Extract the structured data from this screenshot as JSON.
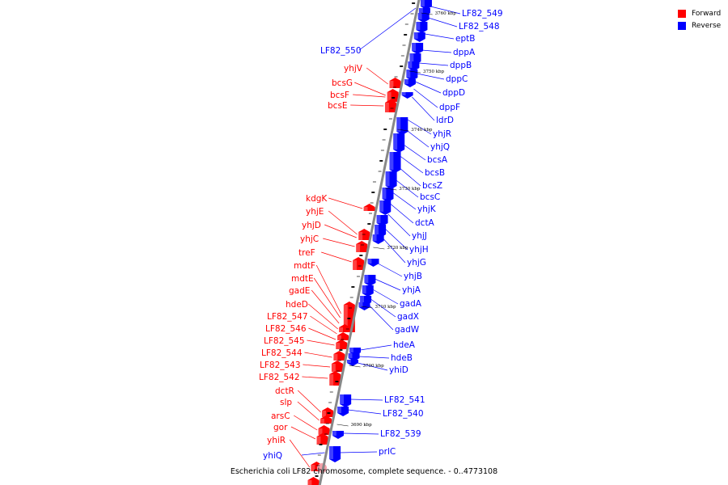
{
  "caption": "Escherichia coli LF82 chromosome, complete sequence. - 0..4773108",
  "legend": [
    {
      "label": "Forward",
      "color": "#ff0000"
    },
    {
      "label": "Reverse",
      "color": "#0000ff"
    }
  ],
  "colors": {
    "forward": "#ff0000",
    "reverse": "#0000ff",
    "axis": "#888888"
  },
  "kbp_ticks": [
    "3760 kbp",
    "3750 kbp",
    "3740 kbp",
    "3730 kbp",
    "3720 kbp",
    "3710 kbp",
    "3700 kbp",
    "3690 kbp"
  ],
  "reverse_genes": [
    "LF82_549",
    "LF82_548",
    "eptB",
    "dppA",
    "dppB",
    "dppC",
    "dppD",
    "dppF",
    "ldrD",
    "yhjR",
    "yhjQ",
    "bcsA",
    "bcsB",
    "bcsZ",
    "bcsC",
    "yhjK",
    "dctA",
    "yhjJ",
    "yhjH",
    "yhjG",
    "yhjB",
    "yhjA",
    "gadA",
    "gadX",
    "gadW",
    "hdeA",
    "hdeB",
    "yhiD",
    "LF82_541",
    "LF82_540",
    "LF82_539",
    "prlC",
    "yhiQ",
    "LF82_550"
  ],
  "forward_genes": [
    "yhjV",
    "bcsG",
    "bcsF",
    "bcsE",
    "kdgK",
    "yhjE",
    "yhjD",
    "yhjC",
    "treF",
    "mdtF",
    "mdtE",
    "gadE",
    "hdeD",
    "LF82_547",
    "LF82_546",
    "LF82_545",
    "LF82_544",
    "LF82_543",
    "LF82_542",
    "dctR",
    "slp",
    "arsC",
    "gor",
    "yhiR"
  ]
}
